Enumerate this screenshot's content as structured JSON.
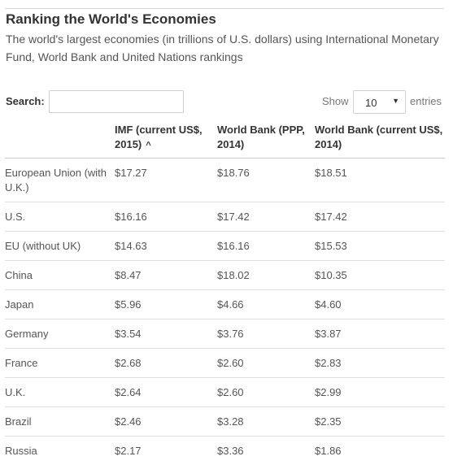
{
  "header": {
    "title": "Ranking the World's Economies",
    "subtitle": "The world's largest economies (in trillions of U.S. dollars) using International Monetary Fund, World Bank and United Nations rankings"
  },
  "controls": {
    "search_label": "Search:",
    "search_value": "",
    "show_label": "Show",
    "entries_selected": "10",
    "entries_label": "entries"
  },
  "table": {
    "columns": [
      {
        "label": ""
      },
      {
        "label": "IMF (current US$, 2015)",
        "sort_icon": "sort-ascending-icon"
      },
      {
        "label": "World Bank (PPP, 2014)"
      },
      {
        "label": "World Bank (current US$, 2014)"
      }
    ],
    "rows": [
      [
        "European Union (with U.K.)",
        "$17.27",
        "$18.76",
        "$18.51"
      ],
      [
        "U.S.",
        "$16.16",
        "$17.42",
        "$17.42"
      ],
      [
        "EU (without UK)",
        "$14.63",
        "$16.16",
        "$15.53"
      ],
      [
        "China",
        "$8.47",
        "$18.02",
        "$10.35"
      ],
      [
        "Japan",
        "$5.96",
        "$4.66",
        "$4.60"
      ],
      [
        "Germany",
        "$3.54",
        "$3.76",
        "$3.87"
      ],
      [
        "France",
        "$2.68",
        "$2.60",
        "$2.83"
      ],
      [
        "U.K.",
        "$2.64",
        "$2.60",
        "$2.99"
      ],
      [
        "Brazil",
        "$2.46",
        "$3.28",
        "$2.35"
      ],
      [
        "Russia",
        "$2.17",
        "$3.36",
        "$1.86"
      ]
    ]
  }
}
